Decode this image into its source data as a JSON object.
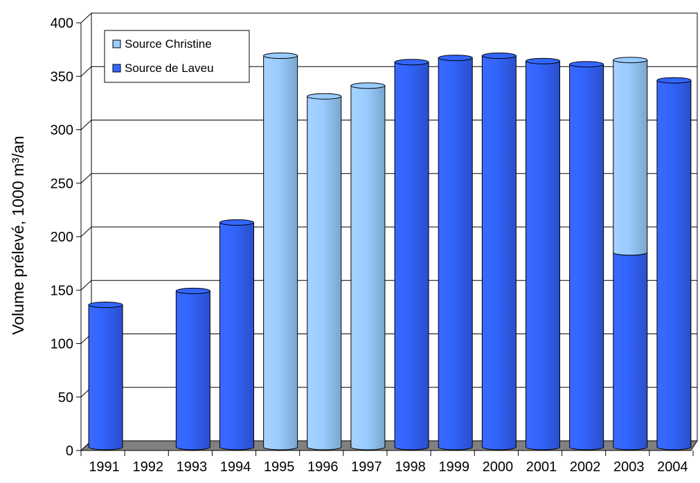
{
  "chart_data": {
    "type": "bar",
    "stacked": true,
    "style": "3d-cylinder",
    "title": "",
    "xlabel": "",
    "ylabel": "Volume prélevé, 1000 m³/an",
    "ylim": [
      0,
      400
    ],
    "yticks": [
      0,
      50,
      100,
      150,
      200,
      250,
      300,
      350,
      400
    ],
    "grid": true,
    "legend_position": "top-left",
    "categories": [
      "1991",
      "1992",
      "1993",
      "1994",
      "1995",
      "1996",
      "1997",
      "1998",
      "1999",
      "2000",
      "2001",
      "2002",
      "2003",
      "2004"
    ],
    "series": [
      {
        "name": "Source de Laveu",
        "color": "#3366ff",
        "values": [
          133,
          0,
          146,
          210,
          0,
          0,
          0,
          360,
          364,
          366,
          361,
          358,
          182,
          343
        ]
      },
      {
        "name": "Source Christine",
        "color": "#99ccff",
        "values": [
          0,
          0,
          0,
          0,
          366,
          328,
          338,
          0,
          0,
          0,
          0,
          0,
          180,
          0
        ]
      }
    ],
    "legend_order": [
      "Source Christine",
      "Source de Laveu"
    ],
    "floor_color": "#808080",
    "wall_color": "#ffffff",
    "gridline_color": "#000000"
  }
}
